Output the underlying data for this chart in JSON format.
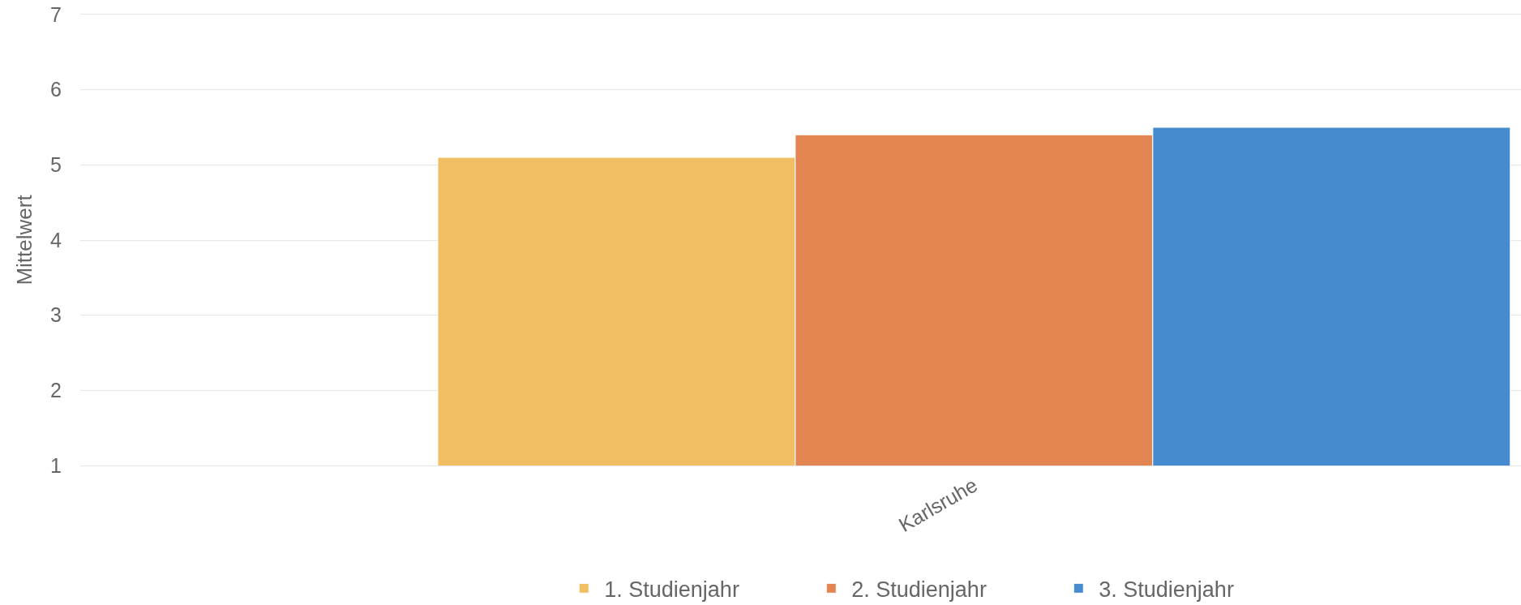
{
  "chart_data": {
    "type": "bar",
    "categories": [
      "Karlsruhe"
    ],
    "ylabel": "Mittelwert",
    "ylim": [
      1,
      7
    ],
    "yticks": [
      1,
      2,
      3,
      4,
      5,
      6,
      7
    ],
    "grid": "y",
    "legend": "bottom",
    "series": [
      {
        "name": "1. Studienjahr",
        "color": "#f2be63",
        "values": [
          5.1
        ]
      },
      {
        "name": "2. Studienjahr",
        "color": "#e28550",
        "values": [
          5.4
        ]
      },
      {
        "name": "3. Studienjahr",
        "color": "#458bcd",
        "values": [
          5.5
        ]
      }
    ]
  }
}
